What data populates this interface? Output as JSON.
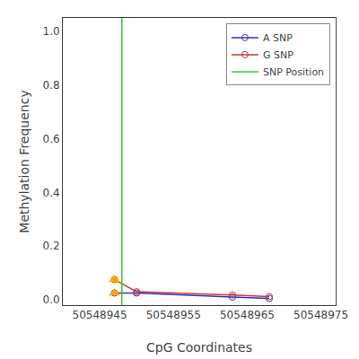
{
  "chart_data": {
    "type": "line",
    "xlabel": "CpG Coordinates",
    "ylabel": "Methylation Frequency",
    "x": [
      50548947,
      50548950,
      50548963,
      50548968
    ],
    "series": [
      {
        "name": "A SNP",
        "color": "#3333cc",
        "marker": "circle-open",
        "values": [
          0.025,
          0.025,
          0.01,
          0.005
        ]
      },
      {
        "name": "G SNP",
        "color": "#cc3333",
        "marker": "circle-open",
        "values": [
          0.075,
          0.03,
          0.018,
          0.012
        ]
      },
      {
        "name": "SNP Position",
        "type": "vline",
        "color": "#33cc33",
        "x": [
          50548948
        ]
      },
      {
        "type": "scatter",
        "marker": "triangle-up",
        "color": "#FFA500",
        "x": [
          50548947,
          50548947
        ],
        "values": [
          0.075,
          0.025
        ]
      }
    ],
    "xlim": [
      50548940,
      50548977
    ],
    "ylim": [
      -0.02,
      1.05
    ],
    "xticks": [
      50548945,
      50548955,
      50548965,
      50548975
    ],
    "yticks": [
      {
        "value": 0.0,
        "label": "0.0"
      },
      0.2,
      0.4,
      0.6,
      0.8,
      {
        "value": 1.0,
        "label": "1.0"
      }
    ],
    "grid": false,
    "legend": "upper right"
  }
}
